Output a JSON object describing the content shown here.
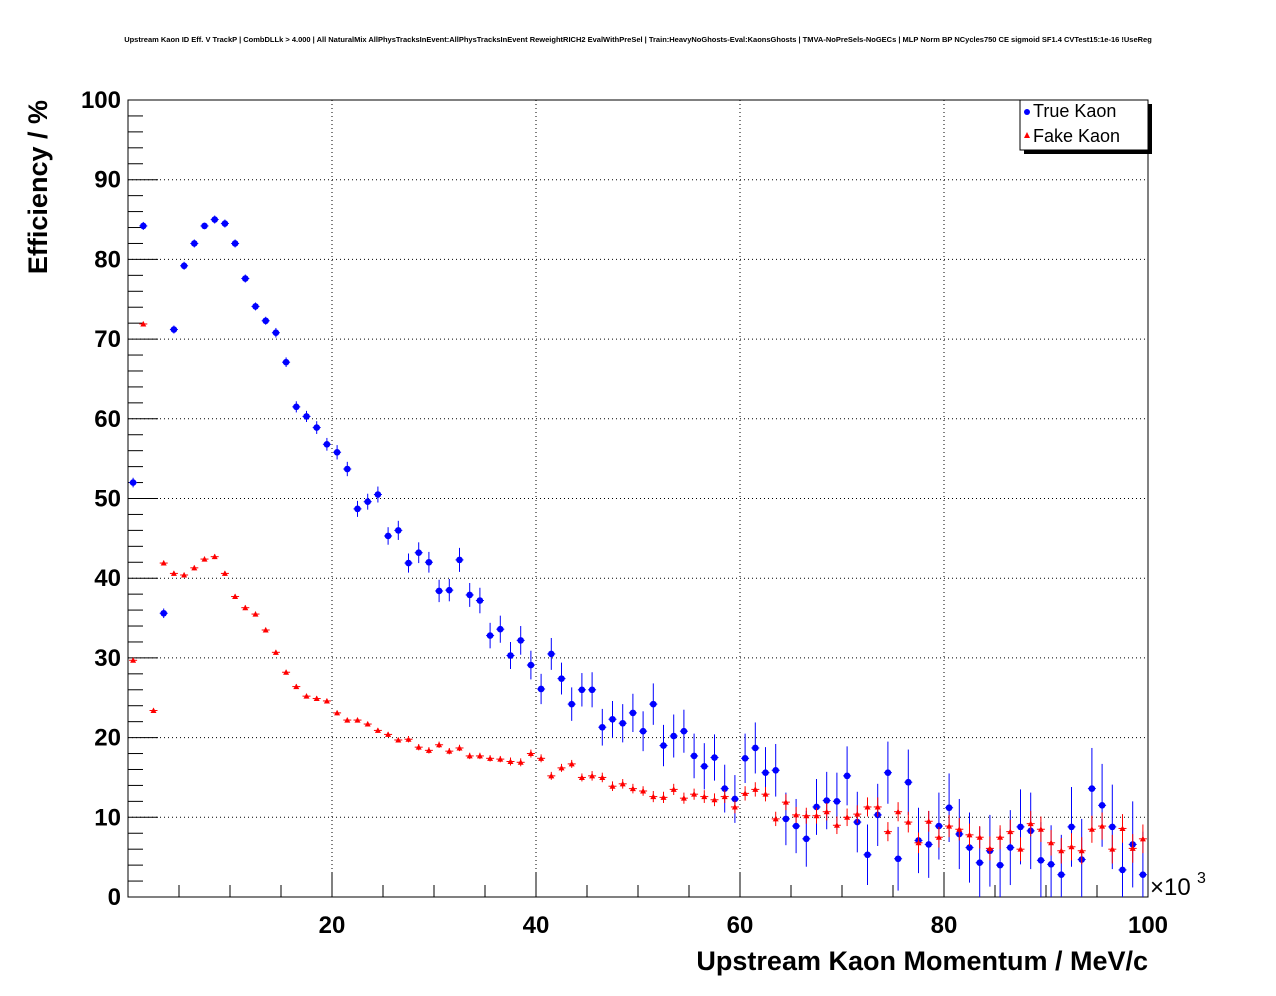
{
  "chart_data": {
    "type": "scatter",
    "title": "Upstream Kaon ID Eff. V TrackP | CombDLLk > 4.000 | All NaturalMix AllPhysTracksInEvent:AllPhysTracksInEvent ReweightRICH2 EvalWithPreSel | Train:HeavyNoGhosts-Eval:KaonsGhosts | TMVA-NoPreSels-NoGECs | MLP Norm BP NCycles750 CE sigmoid SF1.4 CVTest15:1e-16 !UseReg",
    "xlabel": "Upstream Kaon Momentum / MeV/c",
    "ylabel": "Efficiency / %",
    "x_multiplier_label": "×10",
    "x_multiplier_exp": "3",
    "xlim": [
      0,
      100
    ],
    "ylim": [
      0,
      100
    ],
    "x_ticks": [
      20,
      40,
      60,
      80,
      100
    ],
    "y_ticks": [
      0,
      10,
      20,
      30,
      40,
      50,
      60,
      70,
      80,
      90,
      100
    ],
    "x_tick_labels": [
      "20",
      "40",
      "60",
      "80",
      "100"
    ],
    "y_tick_labels": [
      "0",
      "10",
      "20",
      "30",
      "40",
      "50",
      "60",
      "70",
      "80",
      "90",
      "100"
    ],
    "grid": true,
    "legend": "top-right",
    "legend_labels": [
      "True Kaon",
      "Fake Kaon"
    ],
    "series": [
      {
        "name": "True Kaon",
        "color": "#0000ff",
        "marker": "circle",
        "x": [
          0.5,
          1.5,
          3.5,
          4.5,
          5.5,
          6.5,
          7.5,
          8.5,
          9.5,
          10.5,
          11.5,
          12.5,
          13.5,
          14.5,
          15.5,
          16.5,
          17.5,
          18.5,
          19.5,
          20.5,
          21.5,
          22.5,
          23.5,
          24.5,
          25.5,
          26.5,
          27.5,
          28.5,
          29.5,
          30.5,
          31.5,
          32.5,
          33.5,
          34.5,
          35.5,
          36.5,
          37.5,
          38.5,
          39.5,
          40.5,
          41.5,
          42.5,
          43.5,
          44.5,
          45.5,
          46.5,
          47.5,
          48.5,
          49.5,
          50.5,
          51.5,
          52.5,
          53.5,
          54.5,
          55.5,
          56.5,
          57.5,
          58.5,
          59.5,
          60.5,
          61.5,
          62.5,
          63.5,
          64.5,
          65.5,
          66.5,
          67.5,
          68.5,
          69.5,
          70.5,
          71.5,
          72.5,
          73.5,
          74.5,
          75.5,
          76.5,
          77.5,
          78.5,
          79.5,
          80.5,
          81.5,
          82.5,
          83.5,
          84.5,
          85.5,
          86.5,
          87.5,
          88.5,
          89.5,
          90.5,
          91.5,
          92.5,
          93.5,
          94.5,
          95.5,
          96.5,
          97.5,
          98.5,
          99.5
        ],
        "y": [
          52.0,
          84.2,
          35.6,
          71.2,
          79.2,
          82.0,
          84.2,
          85.0,
          84.5,
          82.0,
          77.6,
          74.1,
          72.3,
          70.8,
          67.1,
          61.5,
          60.3,
          58.9,
          56.8,
          55.8,
          53.7,
          48.7,
          49.6,
          50.5,
          45.3,
          46.0,
          41.9,
          43.2,
          42.0,
          38.4,
          38.5,
          42.3,
          37.9,
          37.2,
          32.8,
          33.6,
          30.3,
          32.2,
          29.1,
          26.1,
          30.5,
          27.4,
          24.2,
          26.0,
          26.0,
          21.3,
          22.3,
          21.8,
          23.1,
          20.8,
          24.2,
          19.0,
          20.2,
          20.8,
          17.7,
          16.4,
          17.5,
          13.6,
          12.3,
          17.4,
          18.7,
          15.6,
          15.9,
          9.8,
          8.9,
          7.3,
          11.3,
          12.1,
          12.0,
          15.2,
          9.4,
          5.3,
          10.3,
          15.6,
          4.8,
          14.4,
          7.1,
          6.6,
          8.9,
          11.2,
          7.9,
          6.2,
          4.3,
          5.8,
          4.0,
          6.2,
          8.8,
          8.3,
          4.6,
          4.1,
          2.8,
          8.8,
          4.7,
          13.6,
          11.5,
          8.8,
          3.4,
          6.6,
          2.8
        ],
        "yerr": [
          0.6,
          0.5,
          0.6,
          0.5,
          0.5,
          0.5,
          0.4,
          0.5,
          0.5,
          0.5,
          0.5,
          0.5,
          0.5,
          0.6,
          0.6,
          0.7,
          0.7,
          0.8,
          0.8,
          0.9,
          0.9,
          1.0,
          1.0,
          1.0,
          1.1,
          1.2,
          1.2,
          1.3,
          1.3,
          1.4,
          1.4,
          1.5,
          1.5,
          1.6,
          1.6,
          1.7,
          1.7,
          1.8,
          1.8,
          1.9,
          2.0,
          2.0,
          2.1,
          2.1,
          2.2,
          2.3,
          2.3,
          2.4,
          2.4,
          2.5,
          2.6,
          2.6,
          2.7,
          2.7,
          2.8,
          2.9,
          2.9,
          3.0,
          3.0,
          3.1,
          3.2,
          3.2,
          3.3,
          3.3,
          3.4,
          3.5,
          3.5,
          3.6,
          3.6,
          3.7,
          3.8,
          3.8,
          3.9,
          3.9,
          4.0,
          4.1,
          4.1,
          4.2,
          4.2,
          4.3,
          4.4,
          4.4,
          4.5,
          4.5,
          4.6,
          4.7,
          4.7,
          4.8,
          4.8,
          4.9,
          5.0,
          5.0,
          5.1,
          5.1,
          5.2,
          5.3,
          5.3,
          5.4,
          5.4
        ]
      },
      {
        "name": "Fake Kaon",
        "color": "#ff0000",
        "marker": "triangle",
        "x": [
          0.5,
          1.5,
          2.5,
          3.5,
          4.5,
          5.5,
          6.5,
          7.5,
          8.5,
          9.5,
          10.5,
          11.5,
          12.5,
          13.5,
          14.5,
          15.5,
          16.5,
          17.5,
          18.5,
          19.5,
          20.5,
          21.5,
          22.5,
          23.5,
          24.5,
          25.5,
          26.5,
          27.5,
          28.5,
          29.5,
          30.5,
          31.5,
          32.5,
          33.5,
          34.5,
          35.5,
          36.5,
          37.5,
          38.5,
          39.5,
          40.5,
          41.5,
          42.5,
          43.5,
          44.5,
          45.5,
          46.5,
          47.5,
          48.5,
          49.5,
          50.5,
          51.5,
          52.5,
          53.5,
          54.5,
          55.5,
          56.5,
          57.5,
          58.5,
          59.5,
          60.5,
          61.5,
          62.5,
          63.5,
          64.5,
          65.5,
          66.5,
          67.5,
          68.5,
          69.5,
          70.5,
          71.5,
          72.5,
          73.5,
          74.5,
          75.5,
          76.5,
          77.5,
          78.5,
          79.5,
          80.5,
          81.5,
          82.5,
          83.5,
          84.5,
          85.5,
          86.5,
          87.5,
          88.5,
          89.5,
          90.5,
          91.5,
          92.5,
          93.5,
          94.5,
          95.5,
          96.5,
          97.5,
          98.5,
          99.5
        ],
        "y": [
          29.7,
          71.9,
          23.4,
          41.9,
          40.6,
          40.4,
          41.3,
          42.4,
          42.7,
          40.6,
          37.7,
          36.3,
          35.5,
          33.5,
          30.7,
          28.2,
          26.4,
          25.2,
          24.9,
          24.6,
          23.1,
          22.2,
          22.2,
          21.7,
          20.9,
          20.4,
          19.7,
          19.8,
          18.8,
          18.4,
          19.1,
          18.3,
          18.7,
          17.7,
          17.7,
          17.4,
          17.3,
          17.0,
          16.9,
          18.0,
          17.4,
          15.2,
          16.2,
          16.7,
          15.0,
          15.2,
          15.0,
          13.9,
          14.2,
          13.6,
          13.3,
          12.6,
          12.5,
          13.5,
          12.4,
          12.9,
          12.6,
          12.2,
          12.6,
          11.3,
          13.0,
          13.5,
          12.9,
          9.8,
          11.9,
          10.3,
          10.2,
          10.2,
          10.7,
          9.0,
          10.0,
          10.4,
          11.3,
          11.3,
          8.2,
          10.7,
          9.4,
          6.8,
          9.5,
          7.5,
          8.9,
          8.5,
          7.8,
          7.5,
          6.1,
          7.5,
          8.2,
          6.0,
          9.2,
          8.5,
          6.8,
          5.8,
          6.3,
          5.8,
          8.5,
          8.9,
          6.0,
          8.6,
          6.1,
          7.3
        ],
        "yerr": [
          0.2,
          0.3,
          0.2,
          0.3,
          0.3,
          0.3,
          0.3,
          0.3,
          0.3,
          0.3,
          0.3,
          0.3,
          0.3,
          0.3,
          0.3,
          0.3,
          0.3,
          0.3,
          0.3,
          0.3,
          0.3,
          0.3,
          0.3,
          0.3,
          0.3,
          0.3,
          0.3,
          0.4,
          0.4,
          0.4,
          0.4,
          0.4,
          0.4,
          0.4,
          0.4,
          0.4,
          0.4,
          0.5,
          0.5,
          0.5,
          0.5,
          0.5,
          0.5,
          0.5,
          0.5,
          0.6,
          0.6,
          0.6,
          0.6,
          0.6,
          0.6,
          0.7,
          0.7,
          0.7,
          0.7,
          0.7,
          0.8,
          0.8,
          0.8,
          0.8,
          0.9,
          0.9,
          0.9,
          0.9,
          1.0,
          1.0,
          1.0,
          1.0,
          1.1,
          1.1,
          1.1,
          1.1,
          1.2,
          1.2,
          1.2,
          1.2,
          1.3,
          1.3,
          1.3,
          1.3,
          1.4,
          1.4,
          1.4,
          1.4,
          1.5,
          1.5,
          1.5,
          1.5,
          1.6,
          1.6,
          1.6,
          1.6,
          1.7,
          1.7,
          1.7,
          1.7,
          1.8,
          1.8,
          1.8,
          1.8
        ]
      }
    ]
  }
}
